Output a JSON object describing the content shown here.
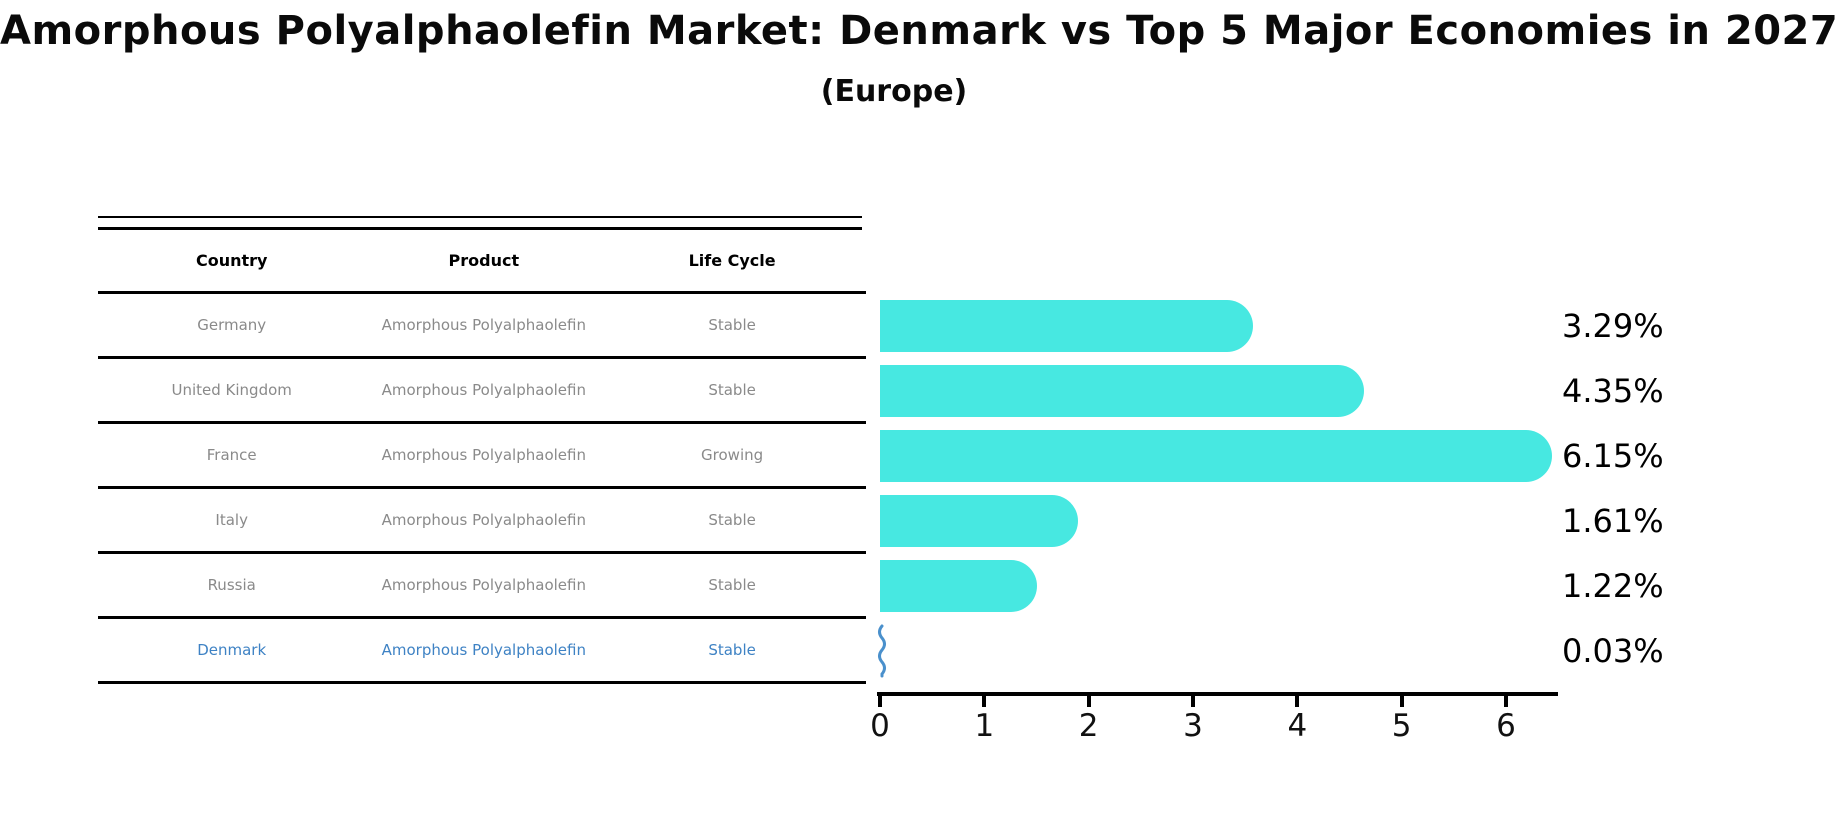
{
  "title": "Amorphous Polyalphaolefin Market: Denmark vs Top 5 Major Economies in 2027",
  "subtitle": "(Europe)",
  "table": {
    "headers": [
      "Country",
      "Product",
      "Life Cycle"
    ],
    "rows": [
      {
        "country": "Germany",
        "product": "Amorphous Polyalphaolefin",
        "life_cycle": "Stable",
        "highlighted": false
      },
      {
        "country": "United Kingdom",
        "product": "Amorphous Polyalphaolefin",
        "life_cycle": "Stable",
        "highlighted": false
      },
      {
        "country": "France",
        "product": "Amorphous Polyalphaolefin",
        "life_cycle": "Growing",
        "highlighted": false
      },
      {
        "country": "Italy",
        "product": "Amorphous Polyalphaolefin",
        "life_cycle": "Stable",
        "highlighted": false
      },
      {
        "country": "Russia",
        "product": "Amorphous Polyalphaolefin",
        "life_cycle": "Stable",
        "highlighted": false
      },
      {
        "country": "Denmark",
        "product": "Amorphous Polyalphaolefin",
        "life_cycle": "Stable",
        "highlighted": true
      }
    ]
  },
  "chart_data": {
    "type": "bar",
    "orientation": "horizontal",
    "categories": [
      "Germany",
      "United Kingdom",
      "France",
      "Italy",
      "Russia",
      "Denmark"
    ],
    "values": [
      3.29,
      4.35,
      6.15,
      1.61,
      1.22,
      0.03
    ],
    "value_labels": [
      "3.29%",
      "4.35%",
      "6.15%",
      "1.61%",
      "1.22%",
      "0.03%"
    ],
    "x_ticks": [
      "0",
      "1",
      "2",
      "3",
      "4",
      "5",
      "6"
    ],
    "xlim": [
      0,
      6.5
    ],
    "xlabel": "",
    "ylabel": "",
    "grid": false,
    "legend": "none",
    "bar_color": "#47e8e1",
    "highlighted_category": "Denmark",
    "highlighted_bar_style": "small wavy blue line at ~0.03"
  },
  "colors": {
    "bar": "#47e8e1",
    "highlight": "#3e82c4",
    "highlight_stroke": "#4a90cc",
    "table_text": "#8a8a8a",
    "axis": "#000000"
  }
}
